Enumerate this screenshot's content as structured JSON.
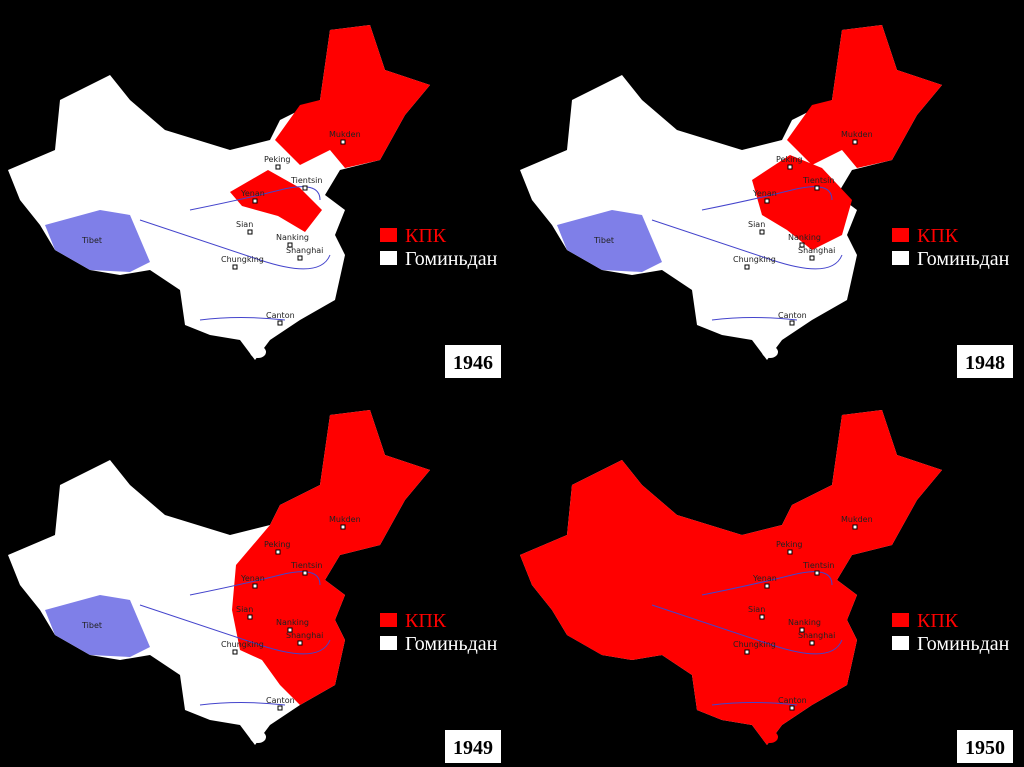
{
  "panels": [
    {
      "year": "1946",
      "legend": [
        "КПК",
        "Гоминьдан"
      ],
      "cities": [
        "Mukden",
        "Peking",
        "Tientsin",
        "Yenan",
        "Sian",
        "Nanking",
        "Shanghai",
        "Chungking",
        "Canton",
        "Tibet"
      ]
    },
    {
      "year": "1948",
      "legend": [
        "КПК",
        "Гоминьдан"
      ],
      "cities": [
        "Mukden",
        "Peking",
        "Tientsin",
        "Yenan",
        "Sian",
        "Nanking",
        "Shanghai",
        "Chungking",
        "Canton",
        "Tibet"
      ]
    },
    {
      "year": "1949",
      "legend": [
        "КПК",
        "Гоминьдан"
      ],
      "cities": [
        "Mukden",
        "Peking",
        "Tientsin",
        "Yenan",
        "Sian",
        "Nanking",
        "Shanghai",
        "Chungking",
        "Canton",
        "Tibet"
      ]
    },
    {
      "year": "1950",
      "legend": [
        "КПК",
        "Гоминьдан"
      ],
      "cities": [
        "Mukden",
        "Peking",
        "Tientsin",
        "Yenan",
        "Sian",
        "Nanking",
        "Shanghai",
        "Chungking",
        "Canton"
      ]
    }
  ]
}
